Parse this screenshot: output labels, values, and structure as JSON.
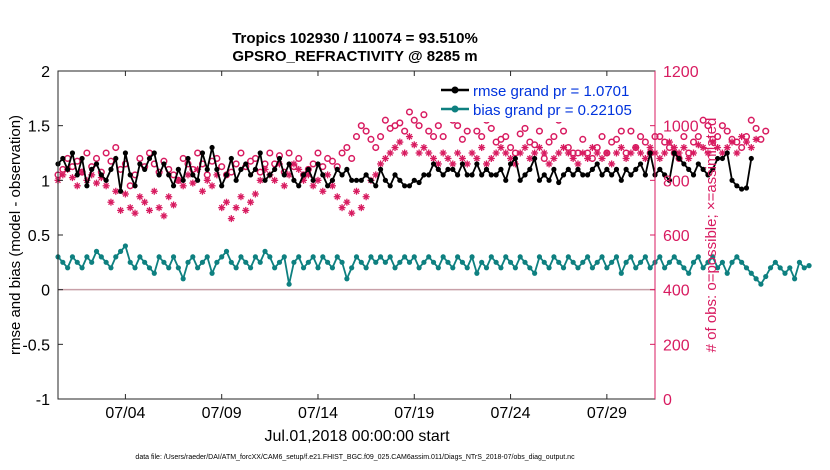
{
  "chart_data": {
    "type": "line",
    "title_line1": "Tropics 102930 / 110074 = 93.510%",
    "title_line2": "GPSRO_REFRACTIVITY @ 8285 m",
    "xlabel": "Jul.01,2018 00:00:00 start",
    "ylabel_left": "rmse and bias (model - observation)",
    "ylabel_right": "# of obs: o=possible; ×=assimilated",
    "footer": "data file: /Users/raeder/DAI/ATM_forcXX/CAM6_setup/f.e21.FHIST_BGC.f09_025.CAM6assim.011/Diags_NTrS_2018-07/obs_diag_output.nc",
    "xlim": [
      0.5,
      31.5
    ],
    "ylim_left": [
      -1,
      2
    ],
    "ylim_right": [
      0,
      1200
    ],
    "x_ticks": [
      4,
      9,
      14,
      19,
      24,
      29
    ],
    "x_tick_labels": [
      "07/04",
      "07/09",
      "07/14",
      "07/19",
      "07/24",
      "07/29"
    ],
    "y_left_ticks": [
      -1,
      -0.5,
      0,
      0.5,
      1,
      1.5,
      2
    ],
    "y_left_tick_labels": [
      "-1",
      "-0.5",
      "0",
      "0.5",
      "1",
      "1.5",
      "2"
    ],
    "y_right_ticks": [
      0,
      200,
      400,
      600,
      800,
      1000,
      1200
    ],
    "y_right_tick_labels": [
      "0",
      "200",
      "400",
      "600",
      "800",
      "1000",
      "1200"
    ],
    "zero_line": 0,
    "colors": {
      "rmse": "#000000",
      "bias": "#0e8080",
      "obs": "#d81b60",
      "legend_text": "#0033dd",
      "zero": "#c8a0a8"
    },
    "series": [
      {
        "name": "rmse grand pr = 1.0701",
        "axis": "left",
        "x_start": 0.5,
        "x_step": 0.25,
        "values": [
          1.15,
          1.2,
          1.1,
          1.25,
          1.05,
          1.2,
          0.95,
          1.1,
          1.15,
          1.05,
          1.0,
          1.1,
          1.2,
          0.9,
          1.25,
          1.05,
          0.95,
          1.15,
          1.1,
          1.2,
          1.25,
          1.05,
          1.15,
          1.05,
          0.95,
          1.1,
          1.0,
          1.2,
          1.05,
          1.0,
          1.25,
          1.1,
          1.3,
          1.1,
          0.95,
          1.05,
          1.2,
          1.0,
          1.1,
          1.15,
          1.05,
          1.1,
          1.25,
          1.0,
          1.05,
          1.1,
          1.2,
          1.05,
          1.15,
          1.0,
          0.95,
          1.05,
          1.1,
          1.0,
          1.15,
          1.05,
          0.95,
          1.0,
          1.1,
          1.05,
          1.1,
          1.0,
          1.0,
          1.0,
          1.05,
          1.0,
          0.95,
          1.1,
          1.0,
          0.95,
          1.05,
          1.0,
          0.95,
          0.95,
          1.0,
          0.98,
          1.05,
          1.05,
          1.15,
          1.1,
          1.05,
          1.1,
          1.1,
          1.05,
          1.15,
          1.05,
          1.05,
          1.15,
          1.05,
          1.1,
          1.05,
          1.05,
          1.1,
          1.0,
          1.15,
          1.2,
          1.0,
          1.05,
          1.1,
          1.2,
          1.0,
          1.05,
          1.0,
          1.1,
          0.98,
          1.05,
          1.1,
          1.05,
          1.1,
          1.05,
          1.05,
          1.1,
          1.15,
          1.05,
          1.1,
          1.05,
          1.1,
          1.0,
          1.1,
          1.05,
          1.1,
          1.15,
          1.05,
          1.25,
          1.05,
          1.1,
          1.05,
          1.0,
          1.25,
          1.2,
          1.15,
          1.1,
          1.05,
          1.15,
          1.1,
          1.05,
          1.1,
          1.2,
          1.2,
          1.25,
          1.0,
          0.95,
          0.92,
          0.93,
          1.2
        ]
      },
      {
        "name": "bias grand pr = 0.22105",
        "axis": "left",
        "x_start": 0.5,
        "x_step": 0.25,
        "values": [
          0.3,
          0.25,
          0.2,
          0.3,
          0.25,
          0.2,
          0.3,
          0.25,
          0.35,
          0.3,
          0.25,
          0.2,
          0.3,
          0.35,
          0.4,
          0.25,
          0.2,
          0.3,
          0.25,
          0.2,
          0.15,
          0.3,
          0.25,
          0.2,
          0.3,
          0.2,
          0.1,
          0.25,
          0.3,
          0.2,
          0.25,
          0.3,
          0.15,
          0.25,
          0.3,
          0.35,
          0.25,
          0.2,
          0.3,
          0.25,
          0.2,
          0.3,
          0.25,
          0.35,
          0.3,
          0.2,
          0.25,
          0.3,
          0.05,
          0.25,
          0.3,
          0.2,
          0.25,
          0.3,
          0.2,
          0.3,
          0.25,
          0.2,
          0.3,
          0.25,
          0.1,
          0.2,
          0.3,
          0.25,
          0.2,
          0.3,
          0.25,
          0.3,
          0.25,
          0.3,
          0.2,
          0.25,
          0.3,
          0.25,
          0.3,
          0.2,
          0.25,
          0.3,
          0.25,
          0.2,
          0.3,
          0.25,
          0.2,
          0.3,
          0.25,
          0.2,
          0.3,
          0.15,
          0.25,
          0.2,
          0.3,
          0.25,
          0.2,
          0.3,
          0.25,
          0.2,
          0.3,
          0.25,
          0.2,
          0.15,
          0.3,
          0.25,
          0.2,
          0.3,
          0.25,
          0.2,
          0.3,
          0.25,
          0.2,
          0.25,
          0.3,
          0.2,
          0.25,
          0.3,
          0.2,
          0.25,
          0.3,
          0.15,
          0.25,
          0.3,
          0.2,
          0.25,
          0.3,
          0.2,
          0.25,
          0.3,
          0.2,
          0.25,
          0.3,
          0.25,
          0.2,
          0.15,
          0.25,
          0.3,
          0.2,
          0.25,
          0.3,
          0.2,
          0.25,
          0.15,
          0.25,
          0.3,
          0.25,
          0.2,
          0.15,
          0.1,
          0.05,
          0.12,
          0.2,
          0.25,
          0.2,
          0.15,
          0.2,
          0.1,
          0.25,
          0.2,
          0.22
        ]
      },
      {
        "name": "possible",
        "axis": "right",
        "marker": "o",
        "x_start": 0.5,
        "x_step": 0.25,
        "values": [
          820,
          840,
          880,
          850,
          870,
          830,
          900,
          850,
          880,
          830,
          900,
          870,
          920,
          840,
          860,
          780,
          820,
          880,
          850,
          900,
          860,
          830,
          870,
          840,
          820,
          800,
          880,
          860,
          840,
          900,
          860,
          820,
          870,
          880,
          850,
          820,
          830,
          860,
          900,
          850,
          870,
          880,
          830,
          860,
          900,
          860,
          890,
          830,
          900,
          850,
          880,
          820,
          840,
          860,
          900,
          850,
          880,
          870,
          850,
          900,
          920,
          880,
          960,
          1000,
          980,
          950,
          920,
          960,
          1020,
          990,
          1000,
          1010,
          980,
          1050,
          1020,
          1000,
          1040,
          980,
          960,
          1000,
          960,
          1060,
          1020,
          1000,
          950,
          980,
          1050,
          980,
          960,
          1020,
          990,
          940,
          950,
          960,
          920,
          900,
          970,
          990,
          940,
          930,
          980,
          880,
          940,
          960,
          1020,
          980,
          920,
          900,
          900,
          950,
          900,
          880,
          920,
          960,
          900,
          940,
          950,
          980,
          900,
          980,
          920,
          960,
          940,
          900,
          960,
          960,
          940,
          920,
          900,
          880,
          960,
          900,
          940,
          960,
          1020,
          1000,
          950,
          960,
          1000,
          980,
          950,
          940,
          920,
          960,
          1020,
          990,
          950,
          980
        ]
      },
      {
        "name": "assimilated",
        "axis": "right",
        "marker": "x",
        "x_start": 0.5,
        "x_step": 0.25,
        "values": [
          800,
          820,
          840,
          810,
          780,
          830,
          800,
          820,
          790,
          810,
          780,
          720,
          760,
          690,
          750,
          700,
          680,
          740,
          720,
          690,
          760,
          700,
          670,
          740,
          710,
          800,
          780,
          820,
          790,
          840,
          760,
          800,
          780,
          820,
          700,
          720,
          660,
          700,
          740,
          690,
          720,
          750,
          800,
          840,
          820,
          800,
          860,
          780,
          820,
          860,
          840,
          800,
          820,
          780,
          800,
          760,
          820,
          780,
          740,
          700,
          720,
          680,
          760,
          700,
          740,
          800,
          820,
          860,
          880,
          900,
          920,
          940,
          900,
          960,
          930,
          900,
          920,
          900,
          880,
          860,
          900,
          880,
          860,
          900,
          880,
          860,
          900,
          880,
          920,
          860,
          880,
          900,
          920,
          900,
          880,
          860,
          900,
          920,
          880,
          900,
          920,
          900,
          860,
          880,
          900,
          920,
          900,
          880,
          860,
          900,
          880,
          920,
          900,
          880,
          900,
          860,
          900,
          920,
          880,
          900,
          920,
          900,
          880,
          920,
          900,
          880,
          900,
          940,
          920,
          900,
          920,
          880,
          900,
          930,
          920,
          900,
          940,
          920,
          900,
          920,
          940,
          900,
          960,
          940,
          920,
          950
        ]
      }
    ]
  }
}
